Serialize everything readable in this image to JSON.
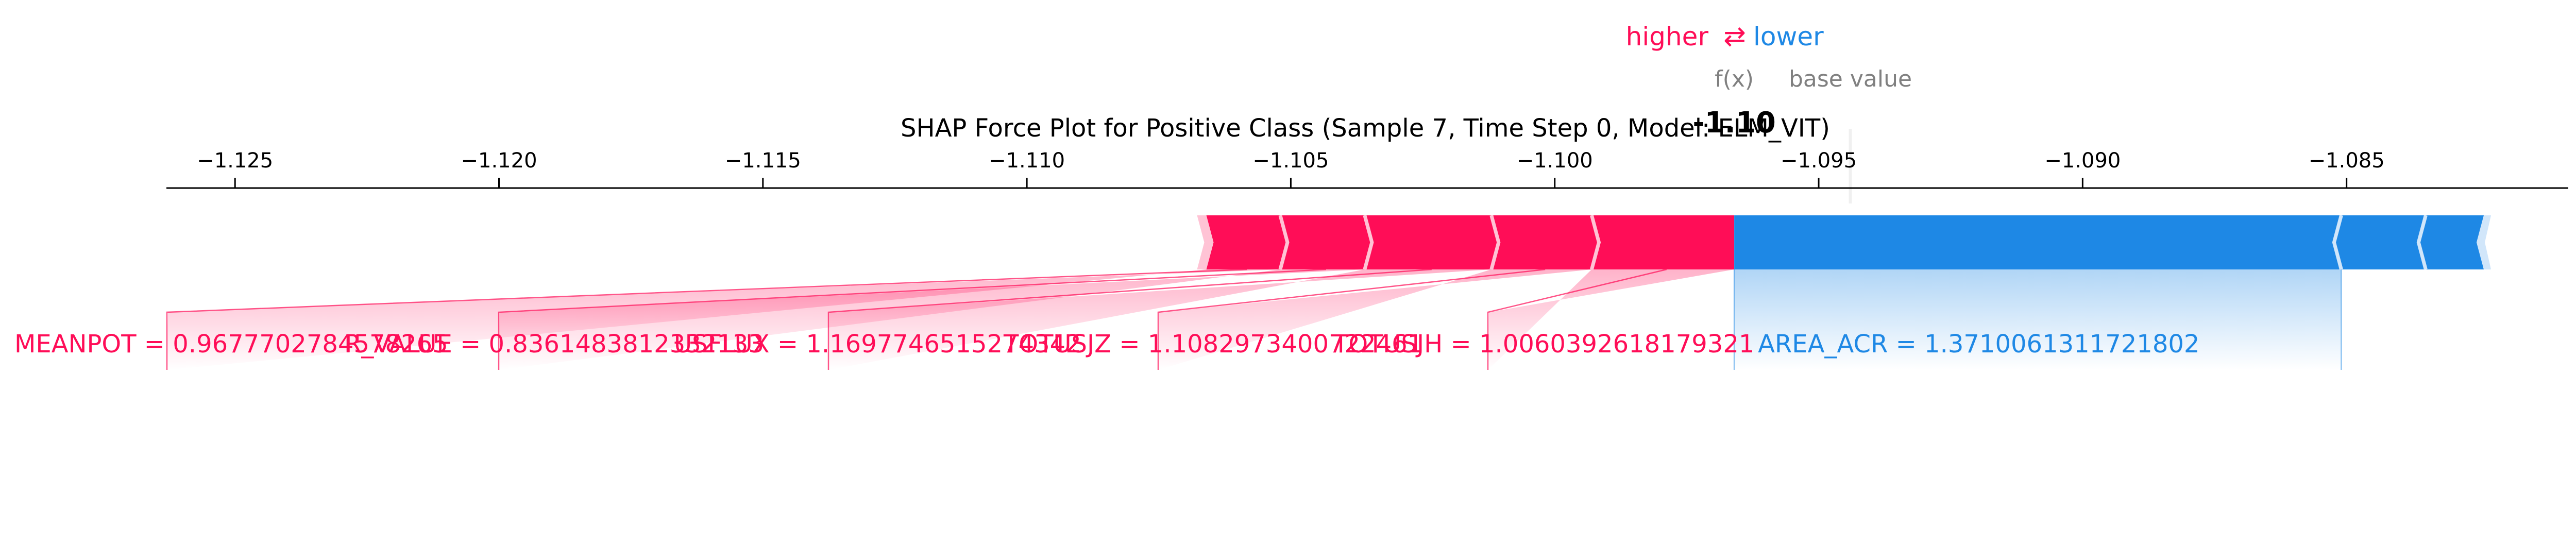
{
  "chart_data": {
    "type": "shap-force",
    "title": "SHAP Force Plot for Positive Class (Sample 7, Time Step 0, Model: ELM_VIT)",
    "legend": {
      "higher": "higher",
      "arrow": "⇄",
      "lower": "lower"
    },
    "fx_label": "f(x)",
    "fx_value": -1.0966,
    "fx_text": "-1.10",
    "base_value_label": "base value",
    "base_value": -1.0944,
    "xlim": [
      -1.1263,
      -1.0808
    ],
    "ticks": [
      -1.125,
      -1.12,
      -1.115,
      -1.11,
      -1.105,
      -1.1,
      -1.095,
      -1.09,
      -1.085
    ],
    "tick_labels": [
      "−1.125",
      "−1.120",
      "−1.115",
      "−1.110",
      "−1.105",
      "−1.100",
      "−1.095",
      "−1.090",
      "−1.085"
    ],
    "colors": {
      "positive": "#ff0d57",
      "negative": "#1e88e5",
      "gray": "#808080",
      "axis": "#000000"
    },
    "positive_features": [
      {
        "label": "MEANPOT = 0.9677702784578265",
        "start": -1.1066,
        "end": -1.1052
      },
      {
        "label": "R_VALUE = 0.8361483812332133",
        "start": -1.1052,
        "end": -1.1036
      },
      {
        "label": "USFLUX = 1.1697746515274342",
        "start": -1.1036,
        "end": -1.1012
      },
      {
        "label": "TOTUSJZ = 1.1082973400722461",
        "start": -1.1012,
        "end": -1.0993
      },
      {
        "label": "TOTUSJH = 1.0060392618179321",
        "start": -1.0993,
        "end": -1.0966
      }
    ],
    "negative_features": [
      {
        "label": "AREA_ACR = 1.3710061311721802",
        "start": -1.0966,
        "end": -1.0851
      },
      {
        "label": "",
        "start": -1.0851,
        "end": -1.0835
      },
      {
        "label": "",
        "start": -1.0835,
        "end": -1.0824
      }
    ]
  }
}
